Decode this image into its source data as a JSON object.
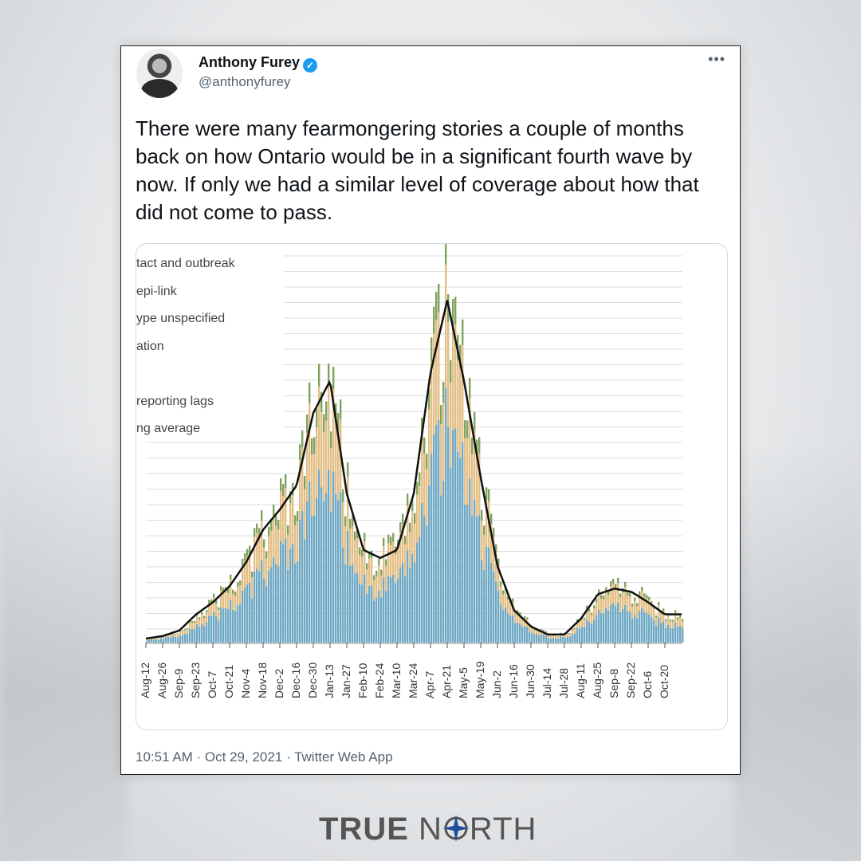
{
  "tweet": {
    "author_name": "Anthony Furey",
    "handle": "@anthonyfurey",
    "verified_icon": "✓",
    "more_icon": "•••",
    "text": "There were many fearmongering stories a couple of months back on how Ontario would be in a significant fourth wave by now. If only we had a similar level of coverage about how that did not come to pass.",
    "timestamp": "10:51 AM · Oct 29, 2021 · Twitter Web App"
  },
  "chart_data": {
    "type": "bar",
    "title": "",
    "xlabel": "",
    "ylabel": "",
    "legend_fragments": [
      "tact and outbreak",
      "epi-link",
      "ype unspecified",
      "ation",
      "",
      "reporting lags",
      "ng average"
    ],
    "categories": [
      "Aug-12",
      "Aug-26",
      "Sep-9",
      "Sep-23",
      "Oct-7",
      "Oct-21",
      "Nov-4",
      "Nov-18",
      "Dec-2",
      "Dec-16",
      "Dec-30",
      "Jan-13",
      "Jan-27",
      "Feb-10",
      "Feb-24",
      "Mar-10",
      "Mar-24",
      "Apr-7",
      "Apr-21",
      "May-5",
      "May-19",
      "Jun-2",
      "Jun-16",
      "Jun-30",
      "Jul-14",
      "Jul-28",
      "Aug-11",
      "Aug-25",
      "Sep-8",
      "Sep-22",
      "Oct-6",
      "Oct-20"
    ],
    "series": [
      {
        "name": "rolling average (relative)",
        "values": [
          5,
          8,
          15,
          35,
          50,
          70,
          100,
          140,
          165,
          195,
          285,
          325,
          185,
          115,
          105,
          115,
          185,
          335,
          425,
          325,
          205,
          95,
          40,
          20,
          10,
          10,
          30,
          60,
          67,
          63,
          50,
          35
        ]
      }
    ],
    "stack_shares": {
      "blue": 0.62,
      "tan": 0.3,
      "green": 0.08
    },
    "colors": {
      "blue": "#6fa8c4",
      "tan": "#e3bf85",
      "green": "#7fa35f",
      "line": "#111111",
      "grid": "#dddddd"
    },
    "ylim": [
      0,
      480
    ]
  },
  "brand": {
    "word1": "TRUE",
    "word2a": "N",
    "word2b": "RTH"
  }
}
